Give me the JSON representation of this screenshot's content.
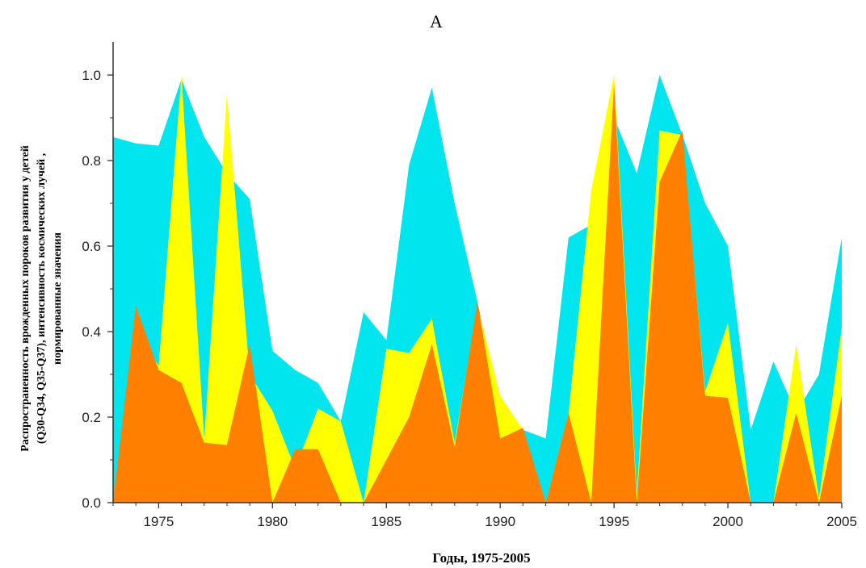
{
  "chart_data": {
    "type": "area",
    "title": "А",
    "xlabel": "Годы,  1975-2005",
    "ylabel_lines": [
      "Распространенность врожденных пороков развития у детей",
      "(Q30-Q34, Q35-Q37), интенсивность космических лучей ,",
      "нормированные значения"
    ],
    "xlim": [
      1973,
      2005
    ],
    "ylim": [
      0,
      1.05
    ],
    "x_ticks": [
      1975,
      1980,
      1985,
      1990,
      1995,
      2000,
      2005
    ],
    "y_ticks": [
      0.0,
      0.2,
      0.4,
      0.6,
      0.8,
      1.0
    ],
    "y_tick_labels": [
      "0.0",
      "0.2",
      "0.4",
      "0.6",
      "0.8",
      "1.0"
    ],
    "grid": false,
    "legend": "none",
    "series": [
      {
        "color": "#00e5ee",
        "points": [
          [
            1973,
            0.855
          ],
          [
            1974,
            0.84
          ],
          [
            1975,
            0.835
          ],
          [
            1976,
            0.99
          ],
          [
            1977,
            0.855
          ],
          [
            1978,
            0.77
          ],
          [
            1979,
            0.71
          ],
          [
            1980,
            0.355
          ],
          [
            1981,
            0.31
          ],
          [
            1982,
            0.28
          ],
          [
            1983,
            0.19
          ],
          [
            1984,
            0.445
          ],
          [
            1985,
            0.38
          ],
          [
            1986,
            0.79
          ],
          [
            1987,
            0.97
          ],
          [
            1988,
            0.7
          ],
          [
            1989,
            0.47
          ],
          [
            1990,
            0.22
          ],
          [
            1991,
            0.17
          ],
          [
            1992,
            0.15
          ],
          [
            1993,
            0.62
          ],
          [
            1994,
            0.65
          ],
          [
            1995,
            0.9
          ],
          [
            1996,
            0.77
          ],
          [
            1997,
            1.0
          ],
          [
            1998,
            0.86
          ],
          [
            1999,
            0.7
          ],
          [
            2000,
            0.6
          ],
          [
            2001,
            0.17
          ],
          [
            2002,
            0.33
          ],
          [
            2003,
            0.21
          ],
          [
            2004,
            0.3
          ],
          [
            2005,
            0.62
          ]
        ]
      },
      {
        "color": "#ffff00",
        "points": [
          [
            1973,
            0.0
          ],
          [
            1974,
            0.4
          ],
          [
            1975,
            0.32
          ],
          [
            1976,
            1.0
          ],
          [
            1977,
            0.15
          ],
          [
            1978,
            0.955
          ],
          [
            1979,
            0.3
          ],
          [
            1980,
            0.215
          ],
          [
            1981,
            0.08
          ],
          [
            1982,
            0.22
          ],
          [
            1983,
            0.19
          ],
          [
            1984,
            0.0
          ],
          [
            1985,
            0.36
          ],
          [
            1986,
            0.35
          ],
          [
            1987,
            0.43
          ],
          [
            1988,
            0.14
          ],
          [
            1989,
            0.46
          ],
          [
            1990,
            0.25
          ],
          [
            1991,
            0.17
          ],
          [
            1992,
            0.0
          ],
          [
            1993,
            0.21
          ],
          [
            1994,
            0.73
          ],
          [
            1995,
            1.0
          ],
          [
            1996,
            0.02
          ],
          [
            1997,
            0.87
          ],
          [
            1998,
            0.86
          ],
          [
            1999,
            0.26
          ],
          [
            2000,
            0.42
          ],
          [
            2001,
            0.0
          ],
          [
            2002,
            0.0
          ],
          [
            2003,
            0.37
          ],
          [
            2004,
            0.01
          ],
          [
            2005,
            0.41
          ]
        ]
      },
      {
        "color": "#ff7f00",
        "points": [
          [
            1973,
            0.0
          ],
          [
            1974,
            0.46
          ],
          [
            1975,
            0.31
          ],
          [
            1976,
            0.28
          ],
          [
            1977,
            0.14
          ],
          [
            1978,
            0.135
          ],
          [
            1979,
            0.37
          ],
          [
            1980,
            0.0
          ],
          [
            1981,
            0.125
          ],
          [
            1982,
            0.125
          ],
          [
            1983,
            0.0
          ],
          [
            1984,
            0.0
          ],
          [
            1985,
            0.1
          ],
          [
            1986,
            0.2
          ],
          [
            1987,
            0.37
          ],
          [
            1988,
            0.13
          ],
          [
            1989,
            0.47
          ],
          [
            1990,
            0.15
          ],
          [
            1991,
            0.175
          ],
          [
            1992,
            0.0
          ],
          [
            1993,
            0.21
          ],
          [
            1994,
            0.0
          ],
          [
            1995,
            0.98
          ],
          [
            1996,
            0.0
          ],
          [
            1997,
            0.75
          ],
          [
            1998,
            0.87
          ],
          [
            1999,
            0.25
          ],
          [
            2000,
            0.245
          ],
          [
            2001,
            0.0
          ],
          [
            2002,
            0.0
          ],
          [
            2003,
            0.21
          ],
          [
            2004,
            0.0
          ],
          [
            2005,
            0.25
          ]
        ]
      }
    ]
  }
}
